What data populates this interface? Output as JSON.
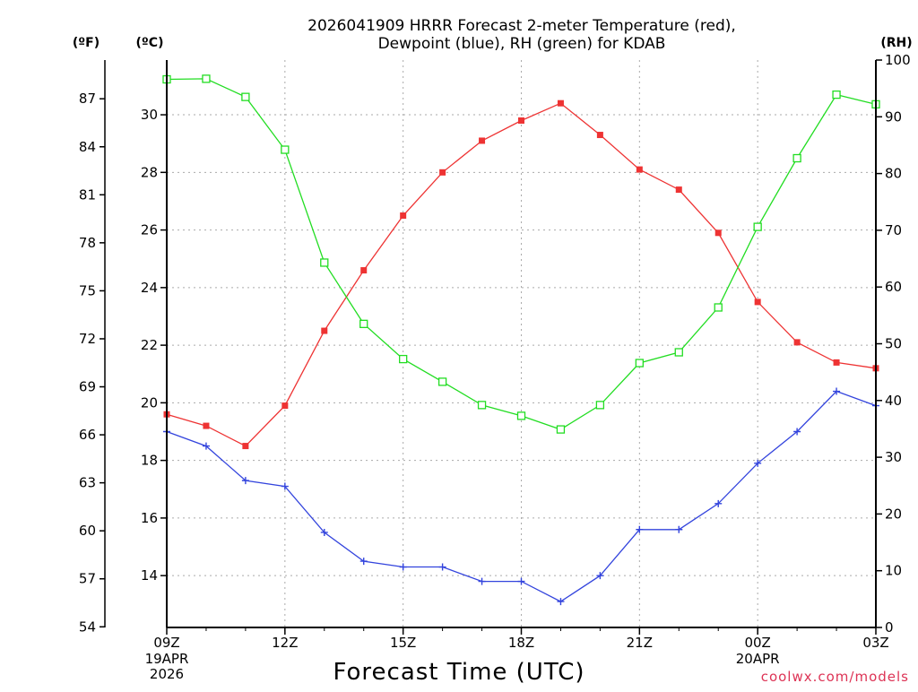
{
  "chart_data": {
    "type": "line",
    "title_line1": "2026041909 HRRR Forecast 2-meter Temperature (red),",
    "title_line2": "Dewpoint (blue), RH (green) for KDAB",
    "xlabel": "Forecast Time (UTC)",
    "credit": "coolwx.com/models",
    "units": {
      "fahrenheit": "(ºF)",
      "celsius": "(ºC)",
      "rh": "(RH)"
    },
    "x_hours": [
      0,
      1,
      2,
      3,
      4,
      5,
      6,
      7,
      8,
      9,
      10,
      11,
      12,
      13,
      14,
      15,
      16,
      17,
      18
    ],
    "x_range": [
      0,
      18
    ],
    "x_ticks": [
      {
        "hour": 0,
        "label": "09Z"
      },
      {
        "hour": 3,
        "label": "12Z"
      },
      {
        "hour": 6,
        "label": "15Z"
      },
      {
        "hour": 9,
        "label": "18Z"
      },
      {
        "hour": 12,
        "label": "21Z"
      },
      {
        "hour": 15,
        "label": "00Z"
      },
      {
        "hour": 18,
        "label": "03Z"
      }
    ],
    "date_labels": [
      {
        "hour": 0,
        "lines": [
          "19APR",
          "2026"
        ]
      },
      {
        "hour": 15,
        "lines": [
          "20APR"
        ]
      }
    ],
    "celsius_range": [
      12.2,
      31.9
    ],
    "celsius_ticks": [
      14,
      16,
      18,
      20,
      22,
      24,
      26,
      28,
      30
    ],
    "fahrenheit_ticks": [
      54,
      57,
      60,
      63,
      66,
      69,
      72,
      75,
      78,
      81,
      84,
      87
    ],
    "rh_range": [
      0,
      100
    ],
    "rh_ticks": [
      0,
      10,
      20,
      30,
      40,
      50,
      60,
      70,
      80,
      90,
      100
    ],
    "series": [
      {
        "name": "Temperature",
        "axis": "celsius",
        "color": "#ee3333",
        "marker": "filled-square",
        "values": [
          19.6,
          19.2,
          18.5,
          19.9,
          22.5,
          24.6,
          26.5,
          28.0,
          29.1,
          29.8,
          30.4,
          29.3,
          28.1,
          27.4,
          25.9,
          23.5,
          22.1,
          21.4,
          21.2
        ]
      },
      {
        "name": "Dewpoint",
        "axis": "celsius",
        "color": "#3344dd",
        "marker": "plus",
        "values": [
          19.0,
          18.5,
          17.3,
          17.1,
          15.5,
          14.5,
          14.3,
          14.3,
          13.8,
          13.8,
          13.1,
          14.0,
          15.6,
          15.6,
          16.5,
          17.9,
          19.0,
          20.4,
          19.9
        ]
      },
      {
        "name": "RH",
        "axis": "rh",
        "color": "#22dd22",
        "marker": "open-square",
        "values": [
          96.6,
          96.7,
          93.5,
          84.2,
          64.3,
          53.5,
          47.3,
          43.3,
          39.2,
          37.3,
          34.9,
          39.2,
          46.6,
          48.5,
          56.4,
          70.6,
          82.7,
          93.9,
          92.2
        ]
      }
    ]
  }
}
